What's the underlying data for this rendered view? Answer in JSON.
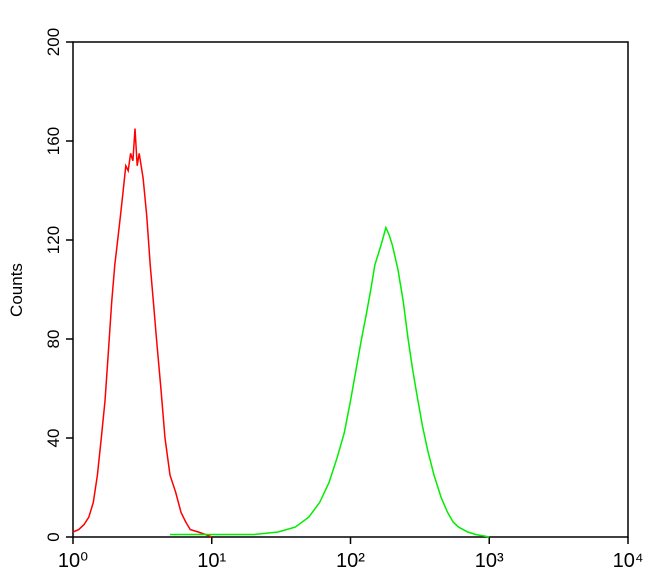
{
  "chart_data": {
    "type": "line",
    "y_label": "Counts",
    "xscale": "log",
    "xlim": [
      1,
      10000
    ],
    "xticks": [
      {
        "value": 1,
        "label": "10⁰"
      },
      {
        "value": 10,
        "label": "10¹"
      },
      {
        "value": 100,
        "label": "10²"
      },
      {
        "value": 1000,
        "label": "10³"
      },
      {
        "value": 10000,
        "label": "10⁴"
      }
    ],
    "ylim": [
      0,
      200
    ],
    "yticks": [
      0,
      40,
      80,
      120,
      160,
      200
    ],
    "series": [
      {
        "color": "#ff0000",
        "x": [
          1.0,
          1.1,
          1.2,
          1.3,
          1.4,
          1.5,
          1.6,
          1.7,
          1.8,
          1.9,
          2.0,
          2.1,
          2.2,
          2.3,
          2.4,
          2.5,
          2.6,
          2.7,
          2.8,
          2.9,
          3.0,
          3.2,
          3.4,
          3.6,
          3.8,
          4.0,
          4.3,
          4.6,
          5.0,
          5.5,
          6.0,
          6.5,
          7.0,
          8.0,
          9.0,
          10
        ],
        "values": [
          2,
          3,
          5,
          8,
          14,
          25,
          40,
          55,
          75,
          95,
          110,
          120,
          130,
          140,
          150,
          148,
          155,
          152,
          165,
          150,
          155,
          145,
          130,
          110,
          95,
          80,
          60,
          40,
          25,
          18,
          10,
          6,
          3,
          2,
          1,
          0
        ]
      },
      {
        "color": "#00ee00",
        "x": [
          5,
          10,
          20,
          30,
          40,
          50,
          60,
          70,
          80,
          90,
          100,
          110,
          120,
          130,
          140,
          150,
          160,
          170,
          180,
          190,
          200,
          220,
          240,
          260,
          280,
          300,
          330,
          360,
          400,
          450,
          500,
          550,
          600,
          700,
          800,
          1000
        ],
        "values": [
          1,
          1,
          1,
          2,
          4,
          8,
          14,
          22,
          32,
          42,
          55,
          68,
          80,
          90,
          100,
          110,
          115,
          120,
          125,
          122,
          118,
          108,
          95,
          80,
          68,
          58,
          45,
          35,
          25,
          16,
          10,
          6,
          4,
          2,
          1,
          0
        ]
      }
    ]
  }
}
